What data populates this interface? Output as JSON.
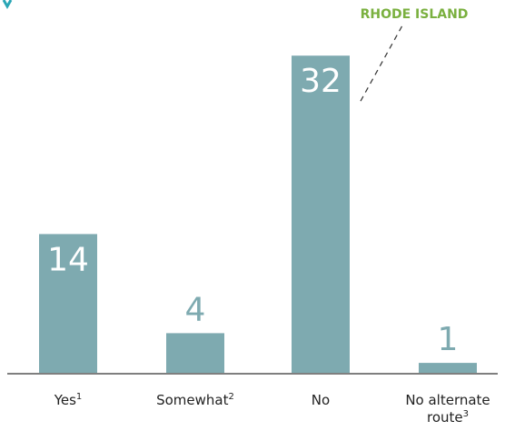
{
  "chart_data": {
    "type": "bar",
    "categories": [
      "Yes",
      "Somewhat",
      "No",
      "No alternate route"
    ],
    "category_labels": [
      {
        "lines": [
          {
            "text": "Yes",
            "sup": "1"
          }
        ]
      },
      {
        "lines": [
          {
            "text": "Somewhat",
            "sup": "2"
          }
        ]
      },
      {
        "lines": [
          {
            "text": "No",
            "sup": ""
          }
        ]
      },
      {
        "lines": [
          {
            "text": "No alternate",
            "sup": ""
          },
          {
            "text": "route",
            "sup": "3"
          }
        ]
      }
    ],
    "values": [
      14,
      4,
      32,
      1
    ],
    "value_labels": [
      "14",
      "4",
      "32",
      "1"
    ],
    "title": "",
    "xlabel": "",
    "ylabel": "",
    "ylim": [
      0,
      36
    ],
    "grid": false,
    "annotation": {
      "text": "RHODE ISLAND",
      "target_category": "No"
    },
    "colors": {
      "bar": "#7eaab0",
      "value_label": "#7eaab0",
      "value_label_inside": "#ffffff",
      "annotation": "#7ab03f",
      "axis": "#333333",
      "top_mark": "#2aa6b5"
    }
  }
}
